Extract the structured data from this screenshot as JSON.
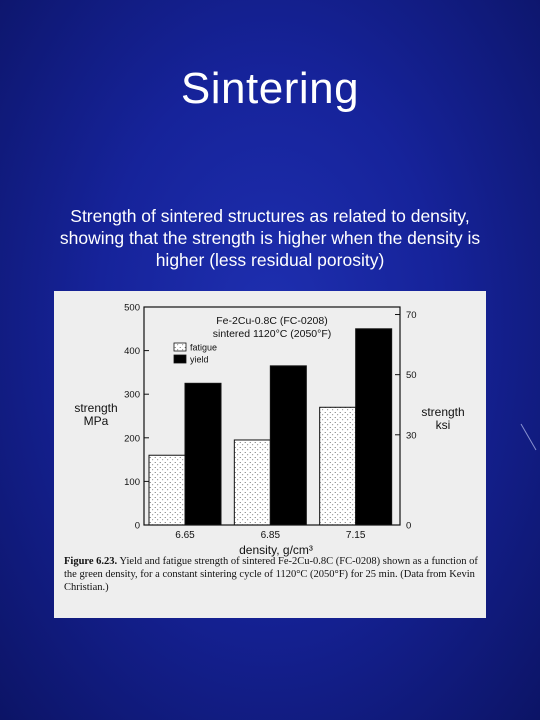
{
  "slide": {
    "title": "Sintering",
    "caption": "Strength of sintered structures as related to density, showing that the strength is higher when the density is higher (less residual porosity)"
  },
  "figure": {
    "caption_label": "Figure 6.23.",
    "caption_text": "Yield and fatigue strength of sintered Fe-2Cu-0.8C (FC-0208) shown as a function of the green density, for a constant sintering cycle of 1120°C (2050°F) for 25 min. (Data from Kevin Christian.)"
  },
  "chart_data": {
    "type": "bar",
    "title": "Fe-2Cu-0.8C (FC-0208)",
    "subtitle": "sintered 1120°C (2050°F)",
    "categories": [
      "6.65",
      "6.85",
      "7.15"
    ],
    "series": [
      {
        "name": "fatigue",
        "values": [
          160,
          195,
          270
        ]
      },
      {
        "name": "yield",
        "values": [
          325,
          365,
          450
        ]
      }
    ],
    "xlabel": "density, g/cm³",
    "ylabel": "strength MPa",
    "ylabel_lines": [
      "strength",
      "MPa"
    ],
    "ylim": [
      0,
      500
    ],
    "yticks": [
      0,
      100,
      200,
      300,
      400,
      500
    ],
    "y2label": "strength ksi",
    "y2label_lines": [
      "strength",
      "ksi"
    ],
    "y2lim": [
      0,
      72.5
    ],
    "y2ticks": [
      0,
      30,
      50,
      70
    ],
    "legend_position": "top-left",
    "grid": false,
    "colors": {
      "fatigue": "#ffffff",
      "yield": "#000000"
    }
  }
}
